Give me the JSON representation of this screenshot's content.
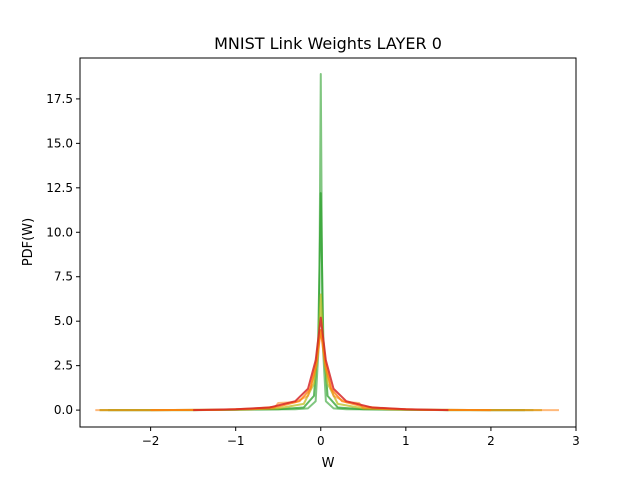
{
  "chart_data": {
    "type": "line",
    "title": "MNIST Link Weights LAYER 0",
    "xlabel": "W",
    "ylabel": "PDF(W)",
    "xlim": [
      -2.83,
      3.0
    ],
    "ylim": [
      -0.95,
      19.8
    ],
    "xticks": [
      -2,
      -1,
      0,
      1,
      2,
      3
    ],
    "xtick_labels": [
      "−2",
      "−1",
      "0",
      "1",
      "2",
      "3"
    ],
    "yticks": [
      0.0,
      2.5,
      5.0,
      7.5,
      10.0,
      12.5,
      15.0,
      17.5
    ],
    "ytick_labels": [
      "0.0",
      "2.5",
      "5.0",
      "7.5",
      "10.0",
      "12.5",
      "15.0",
      "17.5"
    ],
    "grid": false,
    "legend": "none",
    "series": [
      {
        "color": "#2ca02c",
        "opacity": 0.6,
        "points": [
          [
            -2.6,
            0.0
          ],
          [
            -2.0,
            0.0
          ],
          [
            -1.5,
            0.01
          ],
          [
            -1.0,
            0.02
          ],
          [
            -0.6,
            0.04
          ],
          [
            -0.3,
            0.05
          ],
          [
            -0.15,
            0.1
          ],
          [
            -0.06,
            0.5
          ],
          [
            -0.02,
            4.0
          ],
          [
            0.0,
            18.9
          ],
          [
            0.02,
            4.0
          ],
          [
            0.06,
            0.5
          ],
          [
            0.15,
            0.1
          ],
          [
            0.3,
            0.05
          ],
          [
            0.6,
            0.04
          ],
          [
            1.0,
            0.02
          ],
          [
            1.5,
            0.01
          ],
          [
            2.0,
            0.0
          ],
          [
            2.5,
            0.0
          ]
        ]
      },
      {
        "color": "#2ca02c",
        "opacity": 0.75,
        "points": [
          [
            -2.5,
            0.0
          ],
          [
            -1.5,
            0.0
          ],
          [
            -1.0,
            0.02
          ],
          [
            -0.5,
            0.05
          ],
          [
            -0.2,
            0.15
          ],
          [
            -0.08,
            0.8
          ],
          [
            -0.03,
            4.0
          ],
          [
            0.0,
            12.2
          ],
          [
            0.03,
            4.0
          ],
          [
            0.08,
            0.8
          ],
          [
            0.2,
            0.15
          ],
          [
            0.5,
            0.05
          ],
          [
            1.0,
            0.02
          ],
          [
            1.5,
            0.0
          ],
          [
            2.4,
            0.0
          ]
        ]
      },
      {
        "color": "#bcbd22",
        "opacity": 0.75,
        "points": [
          [
            -2.6,
            0.0
          ],
          [
            -1.5,
            0.0
          ],
          [
            -1.0,
            0.03
          ],
          [
            -0.5,
            0.1
          ],
          [
            -0.2,
            0.35
          ],
          [
            -0.08,
            1.5
          ],
          [
            -0.03,
            3.5
          ],
          [
            0.0,
            6.5
          ],
          [
            0.03,
            3.5
          ],
          [
            0.08,
            1.5
          ],
          [
            0.2,
            0.35
          ],
          [
            0.5,
            0.1
          ],
          [
            1.0,
            0.03
          ],
          [
            1.5,
            0.0
          ],
          [
            2.6,
            0.0
          ]
        ]
      },
      {
        "color": "#ff7f0e",
        "opacity": 0.55,
        "points": [
          [
            -2.65,
            0.0
          ],
          [
            -2.0,
            0.0
          ],
          [
            -1.2,
            0.02
          ],
          [
            -0.8,
            0.05
          ],
          [
            -0.55,
            0.1
          ],
          [
            -0.5,
            0.4
          ],
          [
            -0.3,
            0.45
          ],
          [
            -0.15,
            0.8
          ],
          [
            -0.05,
            2.5
          ],
          [
            0.0,
            4.5
          ],
          [
            0.05,
            2.5
          ],
          [
            0.15,
            0.8
          ],
          [
            0.3,
            0.45
          ],
          [
            0.45,
            0.4
          ],
          [
            0.5,
            0.1
          ],
          [
            0.8,
            0.05
          ],
          [
            1.2,
            0.02
          ],
          [
            2.0,
            0.0
          ],
          [
            2.8,
            0.0
          ]
        ]
      },
      {
        "color": "#ff7f0e",
        "opacity": 0.8,
        "points": [
          [
            -2.0,
            0.0
          ],
          [
            -1.2,
            0.02
          ],
          [
            -0.8,
            0.08
          ],
          [
            -0.5,
            0.2
          ],
          [
            -0.25,
            0.5
          ],
          [
            -0.12,
            1.2
          ],
          [
            -0.05,
            2.8
          ],
          [
            0.0,
            4.5
          ],
          [
            0.05,
            2.8
          ],
          [
            0.12,
            1.2
          ],
          [
            0.25,
            0.5
          ],
          [
            0.5,
            0.2
          ],
          [
            0.8,
            0.08
          ],
          [
            1.2,
            0.02
          ],
          [
            2.0,
            0.0
          ]
        ]
      },
      {
        "color": "#d62728",
        "opacity": 0.85,
        "points": [
          [
            -1.5,
            0.0
          ],
          [
            -1.0,
            0.05
          ],
          [
            -0.6,
            0.15
          ],
          [
            -0.3,
            0.5
          ],
          [
            -0.15,
            1.2
          ],
          [
            -0.06,
            2.8
          ],
          [
            0.0,
            5.2
          ],
          [
            0.06,
            2.8
          ],
          [
            0.15,
            1.2
          ],
          [
            0.3,
            0.5
          ],
          [
            0.6,
            0.15
          ],
          [
            1.0,
            0.05
          ],
          [
            1.5,
            0.0
          ]
        ]
      }
    ]
  }
}
